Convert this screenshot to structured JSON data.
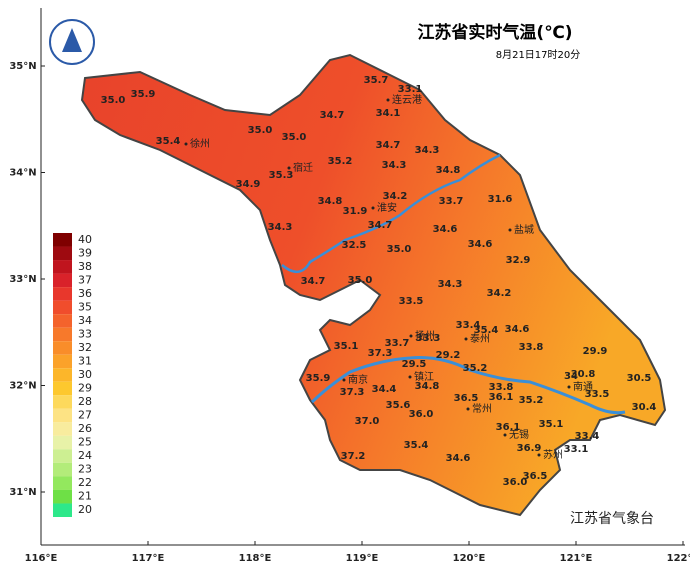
{
  "title": "江苏省实时气温(℃)",
  "subtitle": "8月21日17时20分",
  "credit": "江苏省气象台",
  "x_axis": [
    "116°E",
    "117°E",
    "118°E",
    "119°E",
    "120°E",
    "121°E",
    "122°E"
  ],
  "y_axis": [
    "35°N",
    "34°N",
    "33°N",
    "32°N",
    "31°N"
  ],
  "legend": {
    "values": [
      40,
      39,
      38,
      37,
      36,
      35,
      34,
      33,
      32,
      31,
      30,
      29,
      28,
      27,
      26,
      25,
      24,
      23,
      22,
      21,
      20
    ],
    "colors": [
      "#7f0000",
      "#9e0a10",
      "#c0141e",
      "#d9222a",
      "#e8372c",
      "#f04d2c",
      "#f4632c",
      "#f7792b",
      "#f98d2a",
      "#fba22a",
      "#fcb62a",
      "#fdc82e",
      "#fdd95c",
      "#fde384",
      "#f8ec9e",
      "#e8f2a8",
      "#cdef92",
      "#b3ec7a",
      "#93e85e",
      "#6ee046",
      "#2de88a"
    ]
  },
  "cities": [
    "连云港",
    "徐州",
    "宿迁",
    "淮安",
    "盐城",
    "扬州",
    "泰州",
    "镇江",
    "南京",
    "常州",
    "无锡",
    "苏州",
    "南通"
  ],
  "readings": [
    35.7,
    33.1,
    {
      "value": 35,
      "label": "35.0"
    },
    35.9,
    34.7,
    34.1,
    {
      "value": 35,
      "label": "35.0"
    },
    {
      "value": 35,
      "label": "35.0"
    },
    35.4,
    34.7,
    34.3,
    35.2,
    34.3,
    34.8,
    35.3,
    34.9,
    34.2,
    33.7,
    31.6,
    34.8,
    31.9,
    34.7,
    34.3,
    34.6,
    34.6,
    32.5,
    {
      "value": 35,
      "label": "35.0"
    },
    32.9,
    {
      "value": 35,
      "label": "35.0"
    },
    34.3,
    34.7,
    34.2,
    33.5,
    33.4,
    35.4,
    34.6,
    33.3,
    33.7,
    35.1,
    37.3,
    33.8,
    29.9,
    29.2,
    29.5,
    35.2,
    35.9,
    34.0,
    30.8,
    30.5,
    34.4,
    34.8,
    33.8,
    37.3,
    36.1,
    33.5,
    36.5,
    35.2,
    35.6,
    30.4,
    {
      "value": 36,
      "label": "36.0"
    },
    {
      "value": 37,
      "label": "37.0"
    },
    35.1,
    36.1,
    33.4,
    35.4,
    36.9,
    33.1,
    37.2,
    34.6,
    36.5,
    {
      "value": 36,
      "label": "36.0"
    }
  ]
}
